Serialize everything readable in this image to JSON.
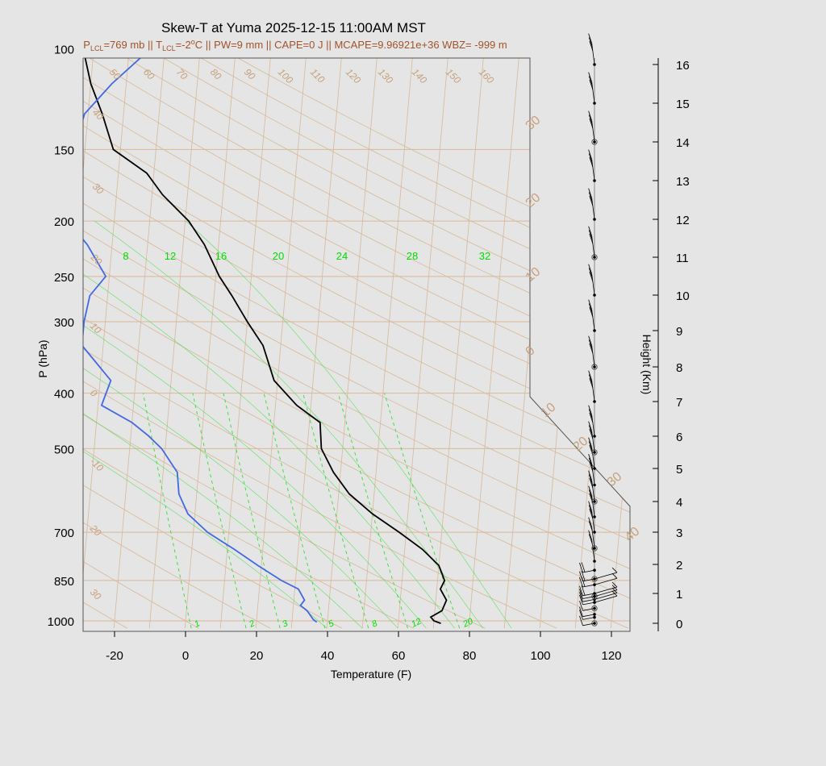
{
  "title": "Skew-T at Yuma 2025-12-15 11:00AM MST",
  "subtitle": {
    "p_lcl_label": "P",
    "p_lcl_sub": "LCL",
    "p_lcl_val": "=769 mb || T",
    "t_lcl_sub": "LCL",
    "t_lcl_val": "=-2",
    "deg": "o",
    "rest": "C || PW=9 mm || CAPE=0 J || MCAPE=9.96921e+36 WBZ= -999 m"
  },
  "chart_data": {
    "type": "line",
    "title": "Skew-T at Yuma 2025-12-15 11:00AM MST",
    "xlabel": "Temperature (F)",
    "ylabel": "P (hPa)",
    "y2label": "Height (Km)",
    "x_ticks": [
      -20,
      0,
      20,
      40,
      60,
      80,
      100,
      120
    ],
    "x_range_F": [
      -28,
      125
    ],
    "y_range_hPa": [
      1030,
      100
    ],
    "y_log": true,
    "p_ticks": [
      100,
      150,
      200,
      250,
      300,
      400,
      500,
      700,
      850,
      1000
    ],
    "height_ticks_km": [
      0,
      1,
      2,
      3,
      4,
      5,
      6,
      7,
      8,
      9,
      10,
      11,
      12,
      13,
      14,
      15,
      16
    ],
    "isotherm_ticks": [
      -20,
      0,
      20,
      40,
      60,
      80,
      100,
      120
    ],
    "dry_adiabat_labels": [
      "50",
      "60",
      "70",
      "80",
      "90",
      "100",
      "110",
      "120",
      "130",
      "140",
      "150",
      "160",
      "40",
      "30",
      "20",
      "10",
      "0",
      "-10",
      "20",
      "30"
    ],
    "isotherm_labels_right": [
      "30",
      "20",
      "10",
      "0",
      "10",
      "20",
      "30",
      "40"
    ],
    "mixing_ratio_top_labels": [
      "8",
      "12",
      "16",
      "20",
      "24",
      "28",
      "32"
    ],
    "mixing_ratio_bottom_labels": [
      "1",
      "2",
      "3",
      "5",
      "8",
      "12",
      "20"
    ],
    "series": [
      {
        "name": "Temperature",
        "color": "#000000",
        "pressure_hPa": [
          1010,
          1000,
          985,
          960,
          920,
          880,
          850,
          800,
          750,
          700,
          650,
          600,
          550,
          500,
          450,
          420,
          380,
          330,
          300,
          270,
          250,
          220,
          200,
          180,
          165,
          150,
          130,
          115,
          100
        ],
        "temp_F": [
          72,
          70,
          69,
          72,
          73,
          71,
          72,
          70,
          65,
          58,
          50,
          43,
          38,
          34,
          33,
          26,
          19,
          15,
          10,
          5,
          1,
          -4,
          -9,
          -17,
          -22,
          -32,
          -36,
          -40,
          -43
        ]
      },
      {
        "name": "Dewpoint",
        "color": "#4169e1",
        "pressure_hPa": [
          1005,
          995,
          960,
          940,
          920,
          880,
          850,
          800,
          750,
          700,
          650,
          600,
          550,
          500,
          475,
          450,
          420,
          380,
          330,
          300,
          270,
          250,
          220,
          200,
          180,
          165,
          150,
          130,
          115,
          100
        ],
        "dewpoint_F": [
          37,
          36,
          34,
          32,
          33,
          31,
          26,
          19,
          12,
          4,
          -2,
          -5,
          -6,
          -11,
          -15,
          -20,
          -29,
          -27,
          -36,
          -36,
          -35,
          -31,
          -37,
          -43,
          -45,
          -46,
          -43,
          -41,
          -34,
          -24
        ]
      }
    ],
    "wind_barb_heights_km": [
      0,
      0.2,
      0.3,
      0.5,
      0.7,
      0.8,
      0.9,
      1.0,
      1.3,
      1.5,
      1.8,
      2.1,
      2.5,
      3.0,
      3.5,
      4.0,
      4.5,
      5.0,
      5.5,
      6.0,
      7.0,
      8.0,
      9.0,
      10.0,
      11.0,
      12.0,
      13.0,
      14.0,
      15.0,
      16.0
    ],
    "legend": "none",
    "grid": true
  }
}
